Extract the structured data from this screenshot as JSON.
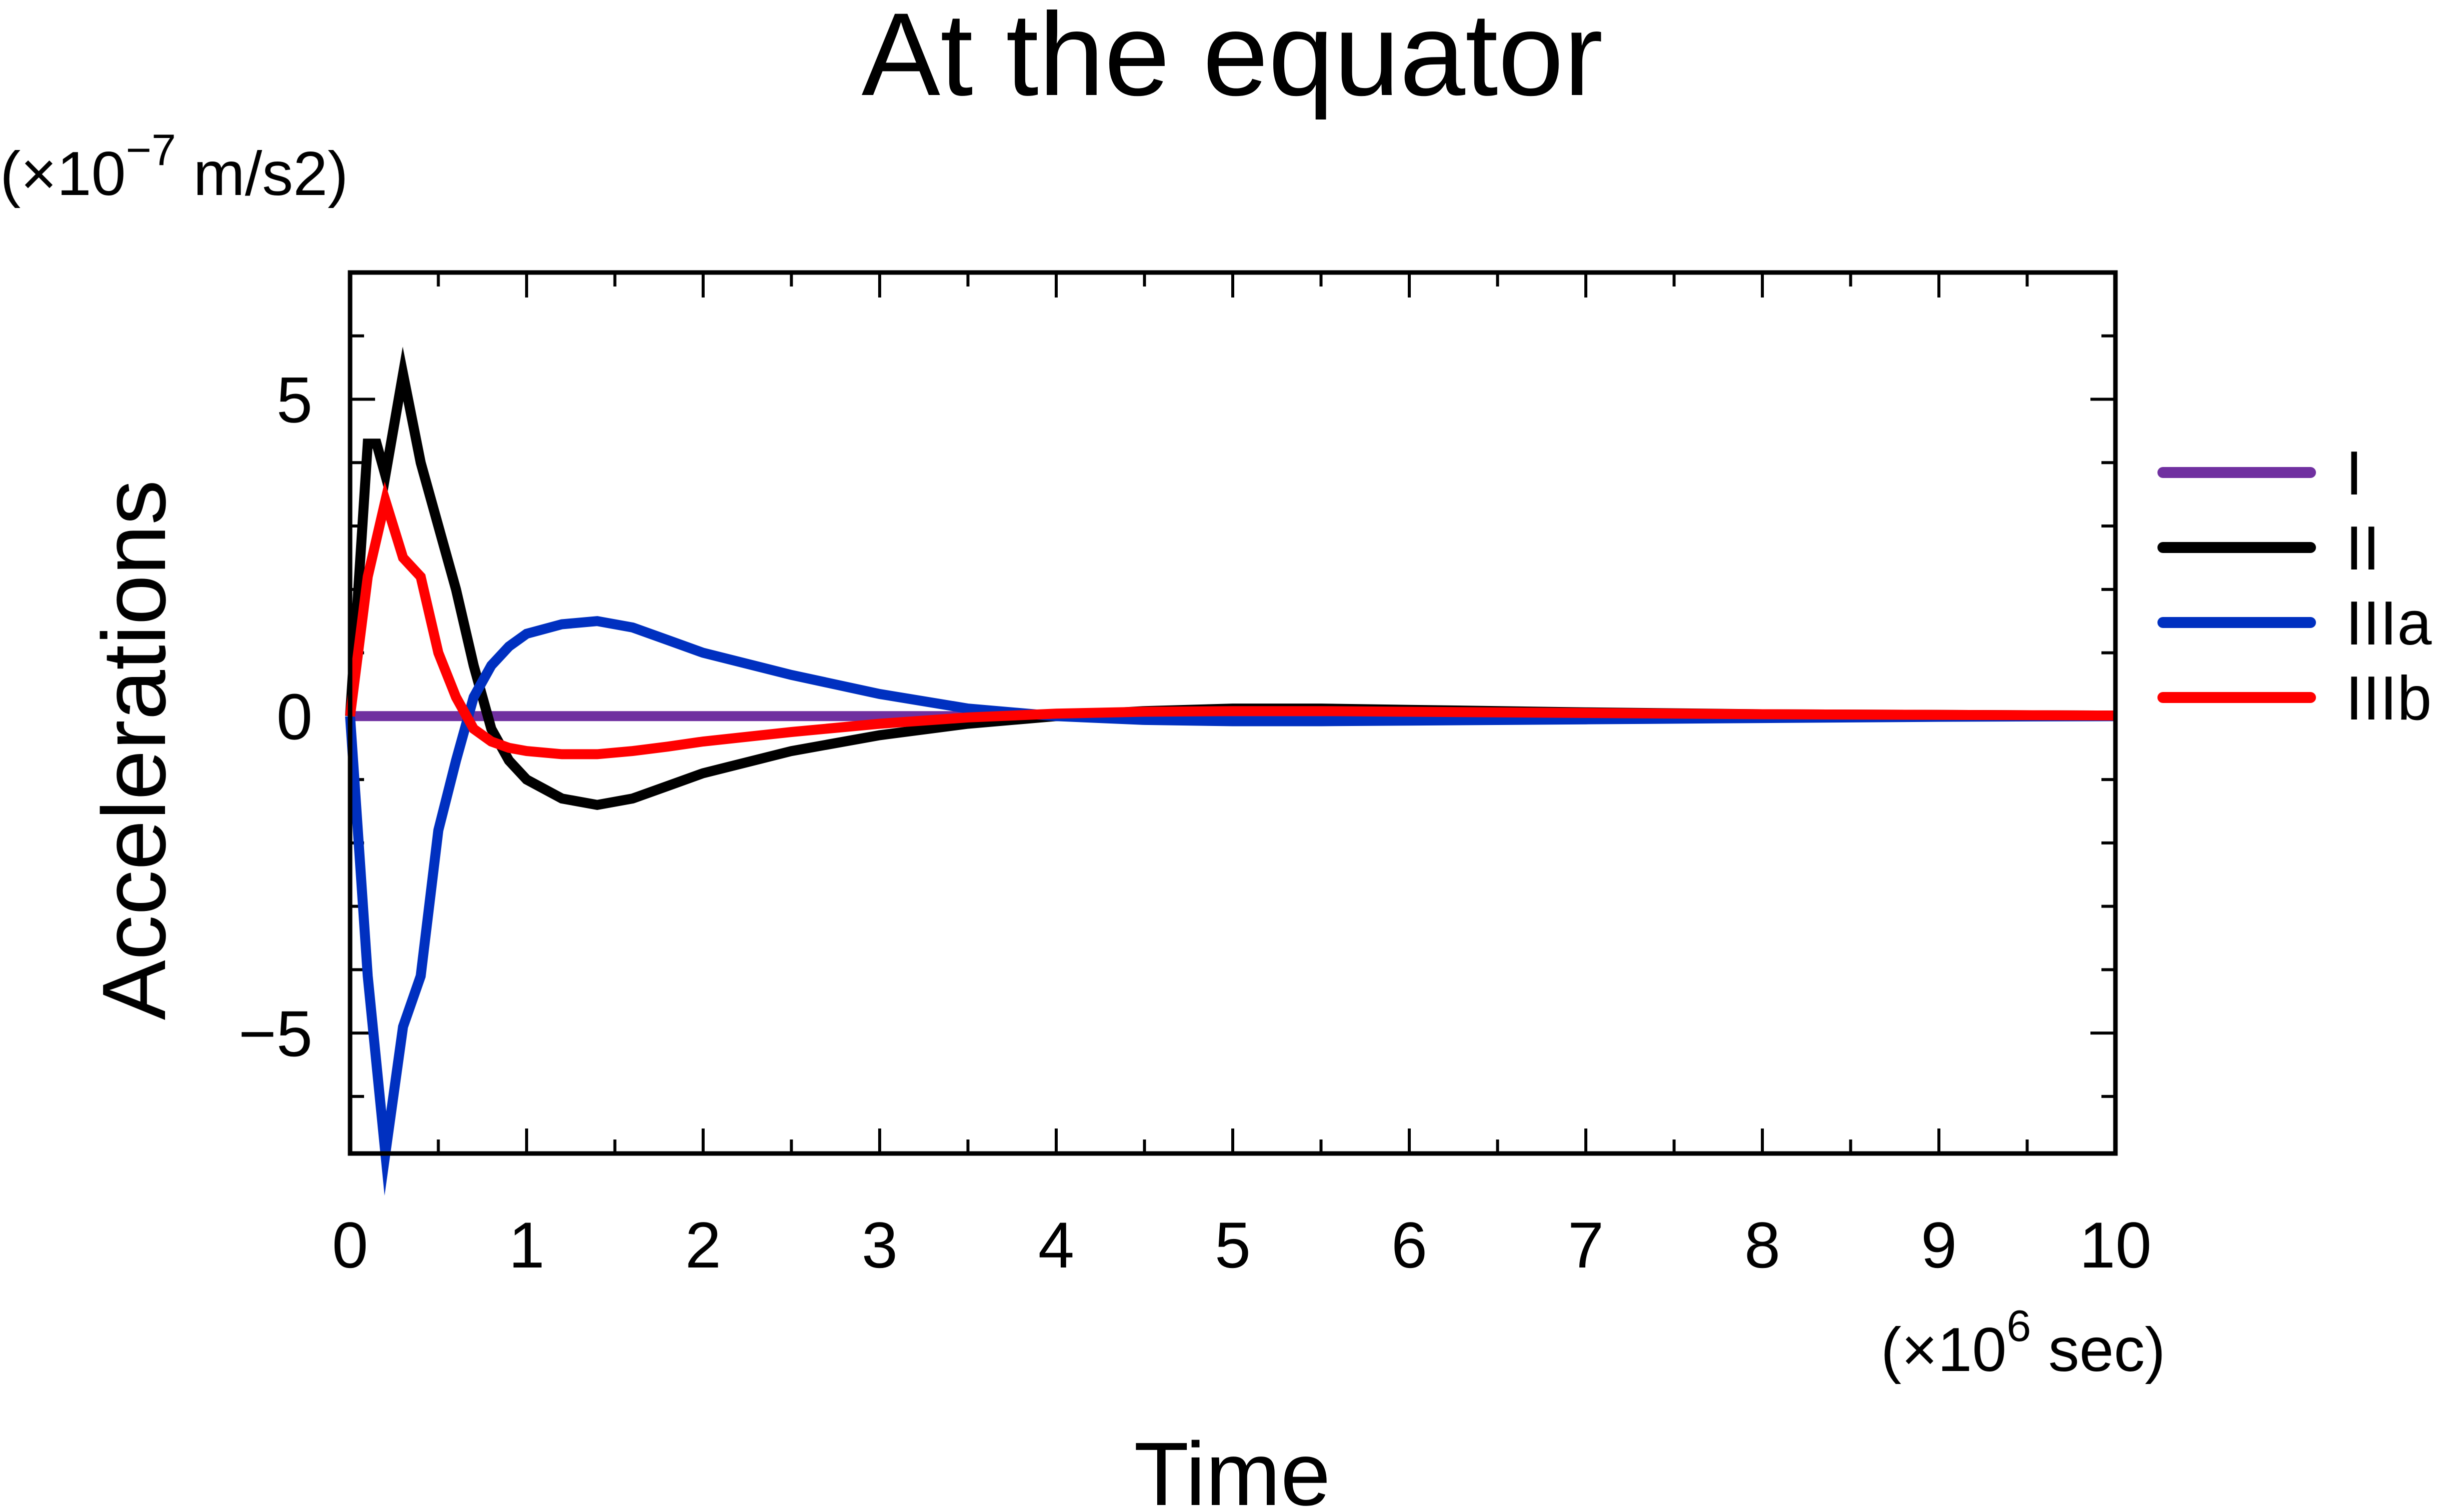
{
  "chart_data": {
    "type": "line",
    "title": "At the equator",
    "xlabel": "Time",
    "ylabel": "Accelerations",
    "x_unit": {
      "base": "(×10",
      "exp": "6",
      "rest": " sec)"
    },
    "y_unit": {
      "base": "(×10",
      "exp": "−7",
      "rest": " m/s2)"
    },
    "xlim": [
      0,
      10
    ],
    "ylim": [
      -6.9,
      7.0
    ],
    "x_ticks": [
      0,
      1,
      2,
      3,
      4,
      5,
      6,
      7,
      8,
      9,
      10
    ],
    "x_tick_labels": [
      "0",
      "1",
      "2",
      "3",
      "4",
      "5",
      "6",
      "7",
      "8",
      "9",
      "10"
    ],
    "y_ticks": [
      -5,
      0,
      5
    ],
    "y_tick_labels": [
      "−5",
      "0",
      "5"
    ],
    "grid": false,
    "legend_position": "right",
    "series": [
      {
        "name": "I",
        "color": "#7030a0",
        "x": [
          0,
          10
        ],
        "y": [
          0,
          0
        ]
      },
      {
        "name": "II",
        "color": "#000000",
        "x": [
          0,
          0.1,
          0.15,
          0.2,
          0.3,
          0.4,
          0.5,
          0.6,
          0.7,
          0.8,
          0.9,
          1.0,
          1.2,
          1.4,
          1.6,
          1.8,
          2.0,
          2.5,
          3.0,
          3.5,
          4.0,
          4.5,
          5.0,
          5.5,
          6.0,
          7.0,
          8.0,
          9.0,
          10.0
        ],
        "y": [
          0,
          4.3,
          4.3,
          3.8,
          5.4,
          4.0,
          3.0,
          2.0,
          0.8,
          -0.2,
          -0.7,
          -1.0,
          -1.3,
          -1.4,
          -1.3,
          -1.1,
          -0.9,
          -0.55,
          -0.3,
          -0.12,
          0.0,
          0.08,
          0.12,
          0.12,
          0.1,
          0.06,
          0.03,
          0.02,
          0.01
        ]
      },
      {
        "name": "IIIa",
        "color": "#0030c0",
        "x": [
          0,
          0.1,
          0.2,
          0.3,
          0.4,
          0.5,
          0.6,
          0.7,
          0.8,
          0.9,
          1.0,
          1.2,
          1.4,
          1.6,
          1.8,
          2.0,
          2.5,
          3.0,
          3.5,
          4.0,
          4.5,
          5.0,
          5.5,
          6.0,
          7.0,
          8.0,
          9.0,
          10.0
        ],
        "y": [
          0,
          -4.1,
          -6.9,
          -4.9,
          -4.1,
          -1.8,
          -0.7,
          0.3,
          0.8,
          1.1,
          1.3,
          1.45,
          1.5,
          1.4,
          1.2,
          1.0,
          0.65,
          0.35,
          0.12,
          0.0,
          -0.06,
          -0.08,
          -0.08,
          -0.07,
          -0.05,
          -0.03,
          -0.01,
          0.0
        ]
      },
      {
        "name": "IIIb",
        "color": "#ff0000",
        "x": [
          0,
          0.1,
          0.2,
          0.3,
          0.4,
          0.5,
          0.6,
          0.7,
          0.8,
          0.9,
          1.0,
          1.2,
          1.4,
          1.6,
          1.8,
          2.0,
          2.5,
          3.0,
          3.5,
          4.0,
          4.5,
          5.0,
          5.5,
          6.0,
          7.0,
          8.0,
          9.0,
          10.0
        ],
        "y": [
          0,
          2.2,
          3.4,
          2.5,
          2.2,
          1.0,
          0.3,
          -0.2,
          -0.4,
          -0.5,
          -0.55,
          -0.6,
          -0.6,
          -0.55,
          -0.48,
          -0.4,
          -0.25,
          -0.12,
          -0.02,
          0.04,
          0.07,
          0.08,
          0.08,
          0.07,
          0.05,
          0.03,
          0.02,
          0.01
        ]
      }
    ]
  }
}
